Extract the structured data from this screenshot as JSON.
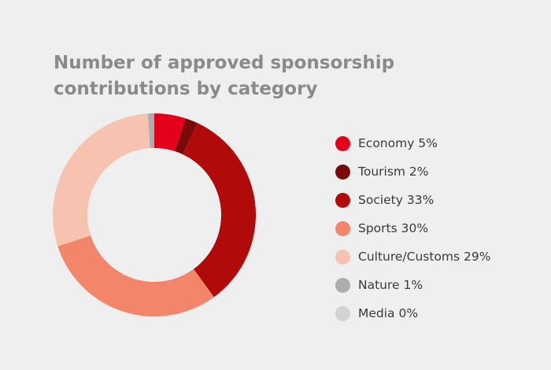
{
  "chart_data": {
    "type": "pie",
    "donut": true,
    "title": "Number of approved sponsorship contributions by category",
    "legend_position": "right",
    "slices": [
      {
        "label": "Economy",
        "value": 5,
        "display": "Economy 5%",
        "color": "#e2001a"
      },
      {
        "label": "Tourism",
        "value": 2,
        "display": "Tourism 2%",
        "color": "#7a0a0a"
      },
      {
        "label": "Society",
        "value": 33,
        "display": "Society 33%",
        "color": "#b00a0a"
      },
      {
        "label": "Sports",
        "value": 30,
        "display": "Sports 30%",
        "color": "#f2856a"
      },
      {
        "label": "Culture/Customs",
        "value": 29,
        "display": "Culture/Customs 29%",
        "color": "#f8c2b0"
      },
      {
        "label": "Nature",
        "value": 1,
        "display": "Nature 1%",
        "color": "#adadad"
      },
      {
        "label": "Media",
        "value": 0,
        "display": "Media 0%",
        "color": "#d3d3d3"
      }
    ]
  }
}
